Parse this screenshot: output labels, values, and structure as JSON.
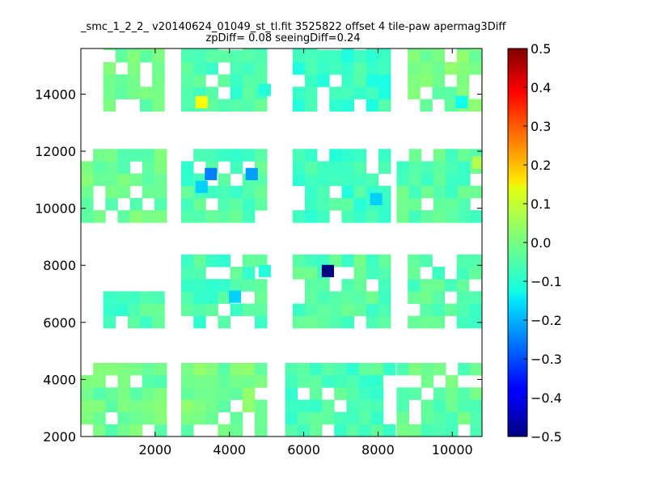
{
  "chart_data": {
    "type": "heatmap",
    "title_line1": "_smc_1_2_2_ v20140624_01049_st_tl.fit 3525822 offset 4 tile-paw apermag3Diff",
    "title_line2": "zpDiff= 0.08 seeingDiff=0.24",
    "xlim": [
      0,
      10800
    ],
    "ylim": [
      2000,
      15600
    ],
    "x_ticks": [
      2000,
      4000,
      6000,
      8000,
      10000
    ],
    "y_ticks": [
      2000,
      4000,
      6000,
      8000,
      10000,
      12000,
      14000
    ],
    "colorbar": {
      "colormap": "jet",
      "range": [
        -0.5,
        0.5
      ],
      "ticks": [
        "0.5",
        "0.4",
        "0.3",
        "0.2",
        "0.1",
        "0.0",
        "−0.1",
        "−0.2",
        "−0.3",
        "−0.4",
        "−0.5"
      ]
    },
    "cell_size": [
      330,
      430
    ],
    "blocks": [
      {
        "x": [
          0,
          2000
        ],
        "y": [
          2000,
          4300
        ],
        "value": -0.02
      },
      {
        "x": [
          2700,
          5000
        ],
        "y": [
          2000,
          4300
        ],
        "value": -0.01
      },
      {
        "x": [
          5500,
          8200
        ],
        "y": [
          2000,
          4300
        ],
        "value": -0.05
      },
      {
        "x": [
          8500,
          10800
        ],
        "y": [
          2000,
          4300
        ],
        "value": -0.03
      },
      {
        "x": [
          600,
          2000
        ],
        "y": [
          5800,
          7000
        ],
        "value": -0.05
      },
      {
        "x": [
          2700,
          5000
        ],
        "y": [
          5800,
          8000
        ],
        "value": -0.05
      },
      {
        "x": [
          5700,
          8200
        ],
        "y": [
          5800,
          8000
        ],
        "value": -0.04
      },
      {
        "x": [
          8800,
          10800
        ],
        "y": [
          5800,
          8000
        ],
        "value": -0.04
      },
      {
        "x": [
          0,
          2000
        ],
        "y": [
          9500,
          11800
        ],
        "value": -0.02
      },
      {
        "x": [
          2700,
          5000
        ],
        "y": [
          9500,
          11800
        ],
        "value": -0.05
      },
      {
        "x": [
          5700,
          8200
        ],
        "y": [
          9500,
          11800
        ],
        "value": -0.06
      },
      {
        "x": [
          8500,
          10800
        ],
        "y": [
          9500,
          11800
        ],
        "value": -0.04
      },
      {
        "x": [
          600,
          2000
        ],
        "y": [
          13400,
          15600
        ],
        "value": -0.02
      },
      {
        "x": [
          2700,
          5000
        ],
        "y": [
          13400,
          15600
        ],
        "value": -0.05
      },
      {
        "x": [
          5700,
          8200
        ],
        "y": [
          13400,
          15600
        ],
        "value": -0.07
      },
      {
        "x": [
          8800,
          10800
        ],
        "y": [
          13400,
          15600
        ],
        "value": -0.01
      }
    ],
    "outliers": [
      {
        "x": 6650,
        "y": 7800,
        "value": -0.5
      },
      {
        "x": 3500,
        "y": 11200,
        "value": -0.25
      },
      {
        "x": 4600,
        "y": 11200,
        "value": -0.22
      },
      {
        "x": 3250,
        "y": 10750,
        "value": -0.17
      },
      {
        "x": 7950,
        "y": 10320,
        "value": -0.17
      },
      {
        "x": 4150,
        "y": 6900,
        "value": -0.17
      },
      {
        "x": 3250,
        "y": 13720,
        "value": 0.12
      },
      {
        "x": 10700,
        "y": 11600,
        "value": 0.05
      },
      {
        "x": 10250,
        "y": 13720,
        "value": -0.11
      },
      {
        "x": 4950,
        "y": 14150,
        "value": -0.09
      },
      {
        "x": 4950,
        "y": 7800,
        "value": -0.09
      },
      {
        "x": 7950,
        "y": 3950,
        "value": -0.08
      }
    ]
  }
}
